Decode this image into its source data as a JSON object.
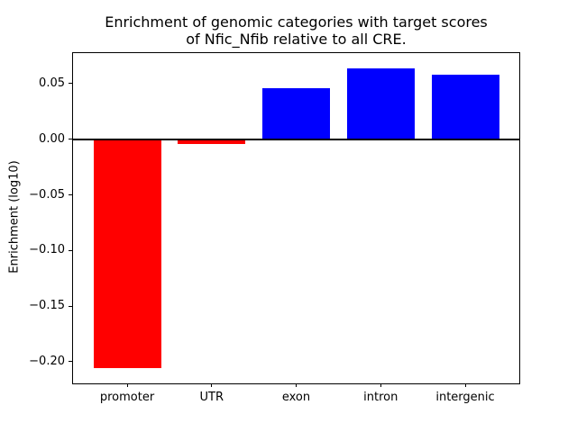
{
  "chart_data": {
    "type": "bar",
    "title": "Enrichment of genomic categories with target scores\nof Nfic_Nfib relative to all CRE.",
    "xlabel": "",
    "ylabel": "Enrichment (log10)",
    "categories": [
      "promoter",
      "UTR",
      "exon",
      "intron",
      "intergenic"
    ],
    "values": [
      -0.206,
      -0.004,
      0.046,
      0.064,
      0.058
    ],
    "bar_colors": [
      "#ff0000",
      "#ff0000",
      "#0000ff",
      "#0000ff",
      "#0000ff"
    ],
    "negative_color": "#ff0000",
    "positive_color": "#0000ff",
    "bar_width": 0.8,
    "xlim": [
      -0.64,
      4.64
    ],
    "ylim": [
      -0.2195,
      0.0775
    ],
    "yticks": [
      {
        "value": 0.05,
        "label": "0.05"
      },
      {
        "value": 0.0,
        "label": "0.00"
      },
      {
        "value": -0.05,
        "label": "−0.05"
      },
      {
        "value": -0.1,
        "label": "−0.10"
      },
      {
        "value": -0.15,
        "label": "−0.15"
      },
      {
        "value": -0.2,
        "label": "−0.20"
      }
    ],
    "zero_line": true,
    "grid": false,
    "legend": null
  }
}
